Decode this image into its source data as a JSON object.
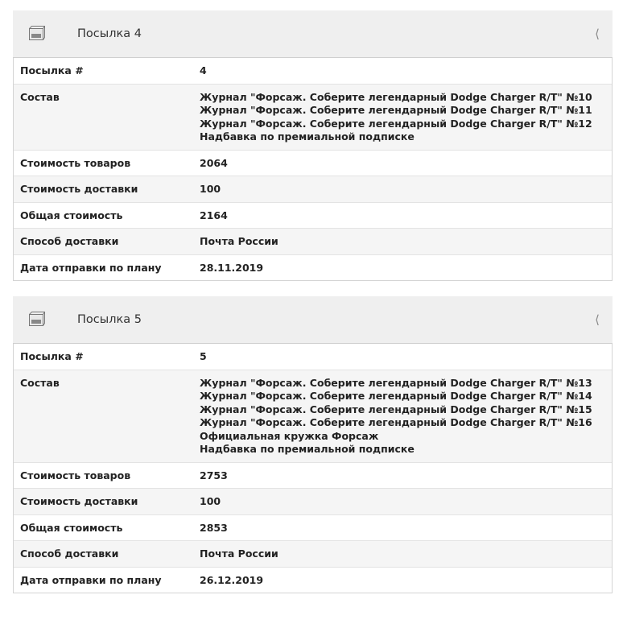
{
  "parcels": [
    {
      "title": "Посылка 4",
      "rows": [
        {
          "label": "Посылка #",
          "values": [
            "4"
          ]
        },
        {
          "label": "Состав",
          "values": [
            "Журнал \"Форсаж. Соберите легендарный Dodge Charger R/T\" №10",
            "Журнал \"Форсаж. Соберите легендарный Dodge Charger R/T\" №11",
            "Журнал \"Форсаж. Соберите легендарный Dodge Charger R/T\" №12",
            "Надбавка по премиальной подписке"
          ]
        },
        {
          "label": "Стоимость товаров",
          "values": [
            "2064"
          ]
        },
        {
          "label": "Стоимость доставки",
          "values": [
            "100"
          ]
        },
        {
          "label": "Общая стоимость",
          "values": [
            "2164"
          ]
        },
        {
          "label": "Способ доставки",
          "values": [
            "Почта России"
          ]
        },
        {
          "label": "Дата отправки по плану",
          "values": [
            "28.11.2019"
          ]
        }
      ]
    },
    {
      "title": "Посылка 5",
      "rows": [
        {
          "label": "Посылка #",
          "values": [
            "5"
          ]
        },
        {
          "label": "Состав",
          "values": [
            "Журнал \"Форсаж. Соберите легендарный Dodge Charger R/T\" №13",
            "Журнал \"Форсаж. Соберите легендарный Dodge Charger R/T\" №14",
            "Журнал \"Форсаж. Соберите легендарный Dodge Charger R/T\" №15",
            "Журнал \"Форсаж. Соберите легендарный Dodge Charger R/T\" №16",
            "Официальная кружка Форсаж",
            "Надбавка по премиальной подписке"
          ]
        },
        {
          "label": "Стоимость товаров",
          "values": [
            "2753"
          ]
        },
        {
          "label": "Стоимость доставки",
          "values": [
            "100"
          ]
        },
        {
          "label": "Общая стоимость",
          "values": [
            "2853"
          ]
        },
        {
          "label": "Способ доставки",
          "values": [
            "Почта России"
          ]
        },
        {
          "label": "Дата отправки по плану",
          "values": [
            "26.12.2019"
          ]
        }
      ]
    }
  ],
  "icons": {
    "header": "package-box-icon",
    "toggle": "chevron-left-icon"
  }
}
